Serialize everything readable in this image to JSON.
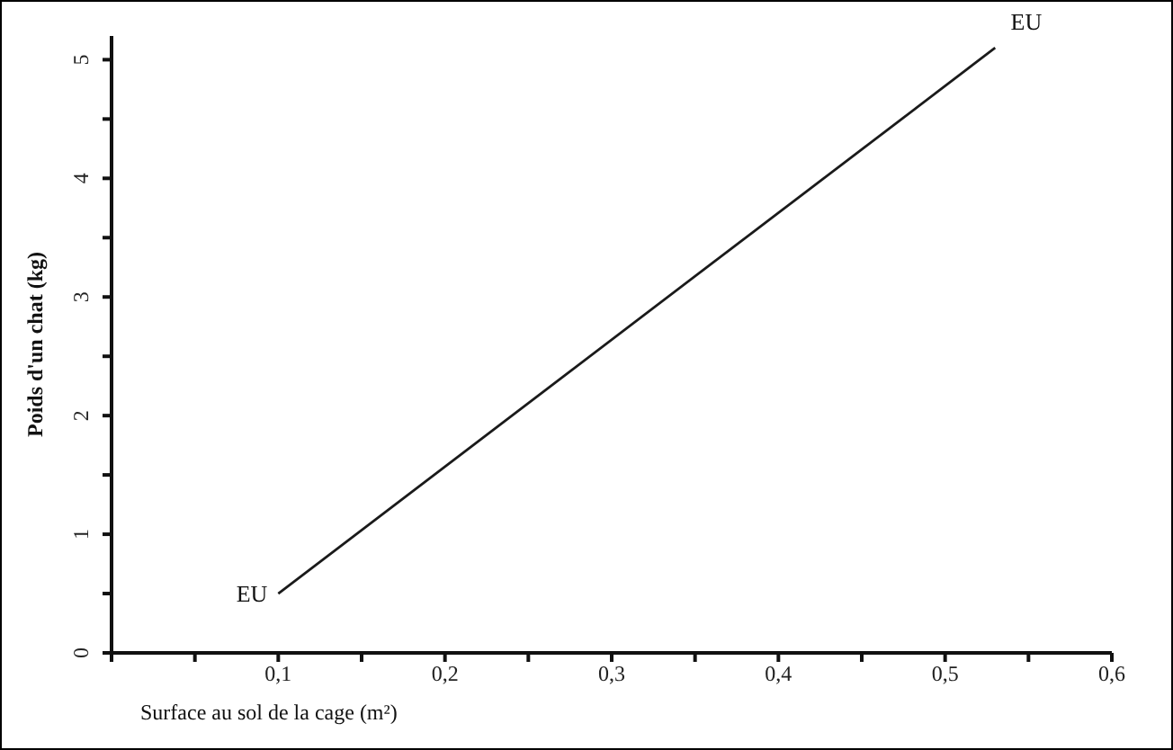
{
  "chart_data": {
    "type": "line",
    "xlabel": "Surface au sol de la cage (m²)",
    "ylabel": "Poids d'un chat (kg)",
    "x": [
      0.1,
      0.53
    ],
    "series": [
      {
        "color": "#1a1a1a",
        "values": [
          0.5,
          5.1
        ]
      }
    ],
    "xlim": [
      0,
      0.6
    ],
    "ylim": [
      0,
      5.2
    ],
    "xticks": [
      {
        "value": 0,
        "label": null
      },
      {
        "value": 0.05,
        "label": null
      },
      {
        "value": 0.1,
        "label": "0,1"
      },
      {
        "value": 0.15,
        "label": null
      },
      {
        "value": 0.2,
        "label": "0,2"
      },
      {
        "value": 0.25,
        "label": null
      },
      {
        "value": 0.3,
        "label": "0,3"
      },
      {
        "value": 0.35,
        "label": null
      },
      {
        "value": 0.4,
        "label": "0,4"
      },
      {
        "value": 0.45,
        "label": null
      },
      {
        "value": 0.5,
        "label": "0,5"
      },
      {
        "value": 0.55,
        "label": null
      },
      {
        "value": 0.6,
        "label": "0,6"
      }
    ],
    "yticks": [
      0,
      {
        "value": 0.5,
        "label": null
      },
      1,
      {
        "value": 1.5,
        "label": null
      },
      2,
      {
        "value": 2.5,
        "label": null
      },
      3,
      {
        "value": 3.5,
        "label": null
      },
      4,
      {
        "value": 4.5,
        "label": null
      },
      5
    ],
    "annotations": [
      {
        "text": "EU",
        "x": 0.1,
        "y": 0.5
      },
      {
        "text": "EU",
        "x": 0.53,
        "y": 5.1
      }
    ],
    "grid": false,
    "legend": false,
    "marker": "none",
    "line_style": "solid"
  }
}
